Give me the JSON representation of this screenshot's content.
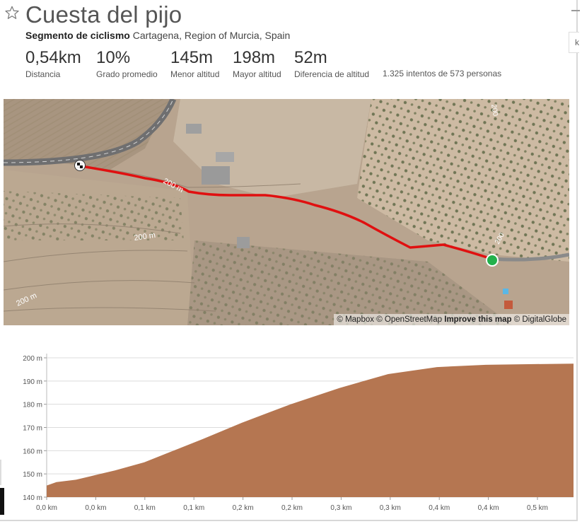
{
  "segment": {
    "title": "Cuesta del pijo",
    "type_label": "Segmento de ciclismo",
    "location": "Cartagena, Region of Murcia, Spain"
  },
  "stats": [
    {
      "value": "0,54km",
      "label": "Distancia"
    },
    {
      "value": "10%",
      "label": "Grado promedio"
    },
    {
      "value": "145m",
      "label": "Menor altitud"
    },
    {
      "value": "198m",
      "label": "Mayor altitud"
    },
    {
      "value": "52m",
      "label": "Diferencia de altitud"
    }
  ],
  "attempts": "1.325 intentos de 573 personas",
  "side_tab": "k",
  "icons": {
    "favorite": "star-outline-icon",
    "start": "start-marker-icon",
    "finish": "finish-flag-icon"
  },
  "map": {
    "contour_labels": [
      "200 m",
      "200 m",
      "200 m",
      "200",
      "200"
    ],
    "attribution": {
      "mapbox": "© Mapbox",
      "osm": "© OpenStreetMap",
      "improve": "Improve this map",
      "digitalglobe": "© DigitalGlobe"
    },
    "colors": {
      "route": "#e01010",
      "start": "#22b14c"
    }
  },
  "chart_data": {
    "type": "area",
    "ylim": [
      140,
      200
    ],
    "yticks": [
      140,
      150,
      160,
      170,
      180,
      190,
      200
    ],
    "ytick_labels": [
      "140 m",
      "150 m",
      "160 m",
      "170 m",
      "180 m",
      "190 m",
      "200 m"
    ],
    "xtick_labels": [
      "0,0 km",
      "0,0 km",
      "0,1 km",
      "0,1 km",
      "0,2 km",
      "0,2 km",
      "0,3 km",
      "0,3 km",
      "0,4 km",
      "0,4 km",
      "0,5 km"
    ],
    "x_km": [
      0,
      0.01,
      0.03,
      0.05,
      0.07,
      0.1,
      0.13,
      0.16,
      0.2,
      0.25,
      0.3,
      0.35,
      0.4,
      0.45,
      0.5,
      0.54
    ],
    "elevation_m": [
      145,
      146.5,
      147.5,
      149.5,
      151.5,
      155,
      160,
      165,
      172,
      180,
      187,
      193,
      196,
      197,
      197.3,
      197.5
    ],
    "fill_color": "#b57651",
    "grid": true
  }
}
